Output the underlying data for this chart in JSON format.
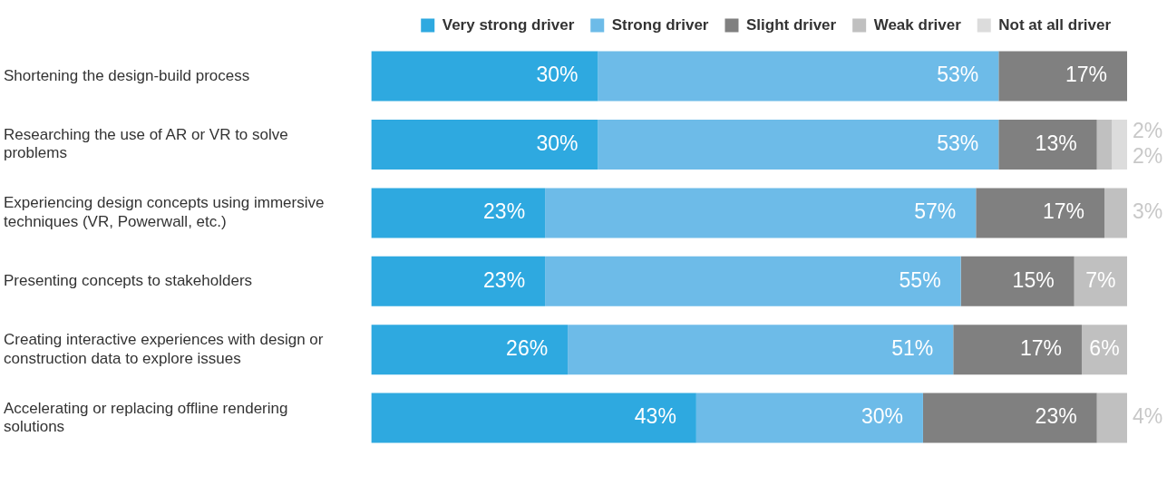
{
  "chart_data": {
    "type": "bar",
    "orientation": "horizontal",
    "stacked": true,
    "legend": "top right",
    "grid": false,
    "tick_labels": "y",
    "categories": [
      "Shortening the design-build process",
      "Researching the use of AR or VR to solve problems",
      "Experiencing design concepts using immersive techniques (VR, Powerwall, etc.)",
      "Presenting concepts to stakeholders",
      "Creating interactive experiences with design or construction data to explore issues",
      "Accelerating or replacing offline rendering solutions"
    ],
    "series": [
      {
        "name": "Very strong driver",
        "color": "#2ea9e0",
        "values": [
          30,
          30,
          23,
          23,
          26,
          43
        ],
        "value_labels": [
          "30%",
          "30%",
          "23%",
          "23%",
          "26%",
          "43%"
        ]
      },
      {
        "name": "Strong driver",
        "color": "#6dbbe8",
        "values": [
          53,
          53,
          57,
          55,
          51,
          30
        ],
        "value_labels": [
          "53%",
          "53%",
          "57%",
          "55%",
          "51%",
          "30%"
        ]
      },
      {
        "name": "Slight driver",
        "color": "#808080",
        "values": [
          17,
          13,
          17,
          15,
          17,
          23
        ],
        "value_labels": [
          "17%",
          "13%",
          "17%",
          "15%",
          "17%",
          "23%"
        ]
      },
      {
        "name": "Weak driver",
        "color": "#c0c0c0",
        "values": [
          null,
          2,
          3,
          7,
          6,
          4
        ],
        "value_labels": [
          null,
          "2%",
          "3%",
          "7%",
          "6%",
          "4%"
        ]
      },
      {
        "name": "Not at all driver",
        "color": "#dcdcdc",
        "values": [
          null,
          2,
          null,
          null,
          null,
          null
        ],
        "value_labels": [
          null,
          "2%",
          null,
          null,
          null,
          null
        ]
      }
    ]
  }
}
